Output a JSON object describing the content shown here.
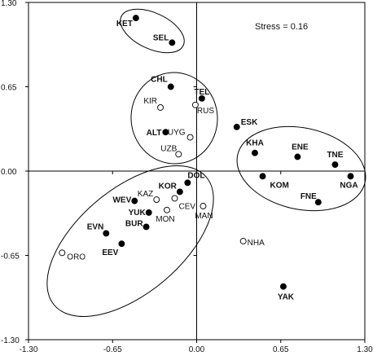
{
  "chart_data": {
    "type": "scatter",
    "title": "",
    "xlabel": "",
    "ylabel": "",
    "xlim": [
      -1.3,
      1.3
    ],
    "ylim": [
      -1.3,
      1.3
    ],
    "x_ticks": [
      "-1.30",
      "-0.65",
      "0.00",
      "0.65",
      "1.30"
    ],
    "y_ticks": [
      "1.30",
      "0.65",
      "0.00",
      "-0.65",
      "-1.30"
    ],
    "grid": false,
    "annotation": "Stress = 0.16",
    "series": [
      {
        "marker": "filled",
        "color": "#000000",
        "points": [
          {
            "label": "KET",
            "x": -0.47,
            "y": 1.18
          },
          {
            "label": "SEL",
            "x": -0.19,
            "y": 0.99
          },
          {
            "label": "CHL",
            "x": -0.2,
            "y": 0.65
          },
          {
            "label": "TEL",
            "x": 0.04,
            "y": 0.56
          },
          {
            "label": "ALT",
            "x": -0.24,
            "y": 0.3
          },
          {
            "label": "ESK",
            "x": 0.31,
            "y": 0.34
          },
          {
            "label": "KHA",
            "x": 0.45,
            "y": 0.14
          },
          {
            "label": "ENE",
            "x": 0.78,
            "y": 0.11
          },
          {
            "label": "TNE",
            "x": 1.07,
            "y": 0.05
          },
          {
            "label": "KOM",
            "x": 0.51,
            "y": -0.04
          },
          {
            "label": "NGA",
            "x": 1.19,
            "y": -0.04
          },
          {
            "label": "FNE",
            "x": 0.94,
            "y": -0.24
          },
          {
            "label": "DOL",
            "x": -0.07,
            "y": -0.09
          },
          {
            "label": "KOR",
            "x": -0.13,
            "y": -0.16
          },
          {
            "label": "WEV",
            "x": -0.48,
            "y": -0.23
          },
          {
            "label": "YUK",
            "x": -0.37,
            "y": -0.32
          },
          {
            "label": "EVN",
            "x": -0.7,
            "y": -0.48
          },
          {
            "label": "BUR",
            "x": -0.39,
            "y": -0.43
          },
          {
            "label": "EEV",
            "x": -0.58,
            "y": -0.56
          },
          {
            "label": "YAK",
            "x": 0.67,
            "y": -0.89
          }
        ]
      },
      {
        "marker": "open",
        "color": "#000000",
        "points": [
          {
            "label": "KIR",
            "x": -0.28,
            "y": 0.49
          },
          {
            "label": "RUS",
            "x": -0.01,
            "y": 0.51
          },
          {
            "label": "UYG",
            "x": -0.05,
            "y": 0.26
          },
          {
            "label": "UZB",
            "x": -0.14,
            "y": 0.13
          },
          {
            "label": "KAZ",
            "x": -0.31,
            "y": -0.22
          },
          {
            "label": "CEV",
            "x": -0.17,
            "y": -0.21
          },
          {
            "label": "MON",
            "x": -0.23,
            "y": -0.3
          },
          {
            "label": "MAN",
            "x": 0.05,
            "y": -0.27
          },
          {
            "label": "NHA",
            "x": 0.36,
            "y": -0.54
          },
          {
            "label": "ORO",
            "x": -1.04,
            "y": -0.63
          }
        ]
      }
    ]
  }
}
